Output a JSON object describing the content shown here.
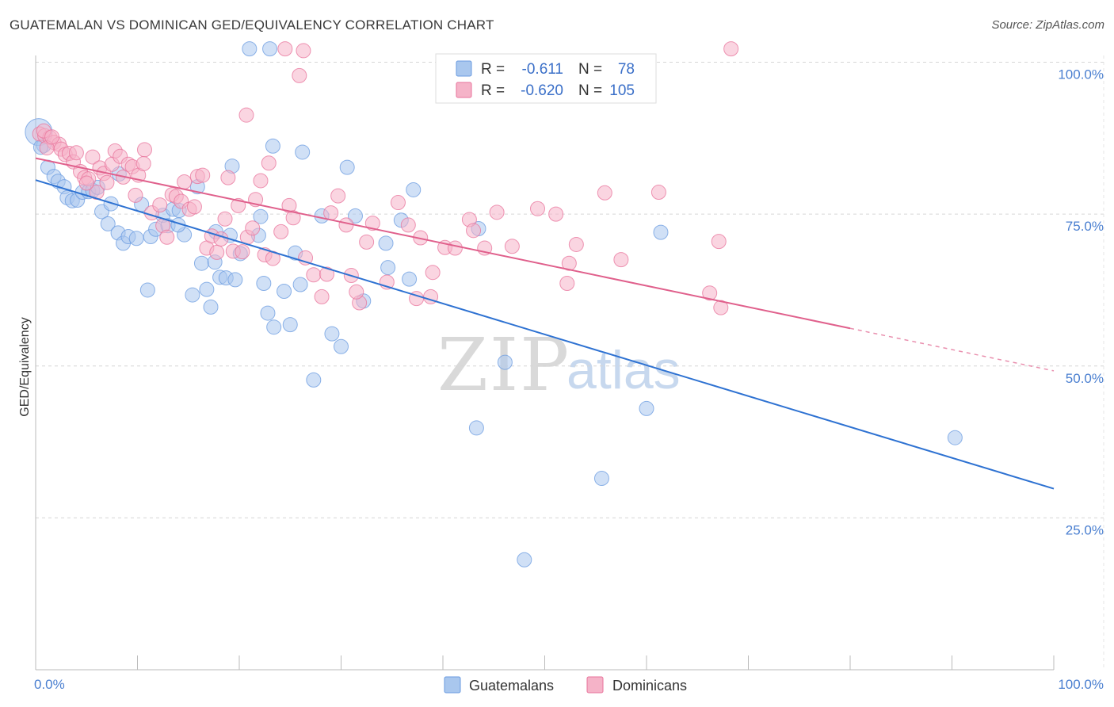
{
  "header": {
    "title": "GUATEMALAN VS DOMINICAN GED/EQUIVALENCY CORRELATION CHART",
    "source": "Source: ZipAtlas.com"
  },
  "watermark": {
    "zip": "ZIP",
    "atlas": "atlas"
  },
  "legend": {
    "rows": [
      {
        "r_label": "R =",
        "r_value": "-0.611",
        "n_label": "N =",
        "n_value": "78",
        "color": "#a9c7ee"
      },
      {
        "r_label": "R =",
        "r_value": "-0.620",
        "n_label": "N =",
        "n_value": "105",
        "color": "#f5b3c8"
      }
    ]
  },
  "bottom_legend": {
    "items": [
      {
        "label": "Guatemalans",
        "color": "#a9c7ee"
      },
      {
        "label": "Dominicans",
        "color": "#f5b3c8"
      }
    ]
  },
  "chart_data": {
    "type": "scatter",
    "title": "GUATEMALAN VS DOMINICAN GED/EQUIVALENCY CORRELATION CHART",
    "xlabel": "",
    "ylabel": "GED/Equivalency",
    "xlim": [
      0,
      100
    ],
    "ylim": [
      0,
      105
    ],
    "x_tick_labels": [
      {
        "value": 0,
        "label": "0.0%"
      },
      {
        "value": 100,
        "label": "100.0%"
      }
    ],
    "y_tick_labels": [
      {
        "value": 100,
        "label": "100.0%"
      },
      {
        "value": 75,
        "label": "75.0%"
      },
      {
        "value": 50,
        "label": "50.0%"
      },
      {
        "value": 25,
        "label": "25.0%"
      }
    ],
    "grid": true,
    "legend_placement": "top-center",
    "series": [
      {
        "name": "Guatemalans",
        "color": "#6a9be0",
        "fill": "#a9c7ee",
        "trend": {
          "x": [
            0,
            100
          ],
          "y": [
            80.6,
            29.8
          ]
        },
        "points": [
          [
            0.3,
            88.5
          ],
          [
            0.8,
            86.3
          ],
          [
            1.2,
            82.7
          ],
          [
            1.8,
            81.2
          ],
          [
            2.2,
            80.4
          ],
          [
            2.8,
            79.5
          ],
          [
            3.1,
            77.7
          ],
          [
            3.6,
            77.2
          ],
          [
            4.1,
            77.3
          ],
          [
            4.6,
            78.6
          ],
          [
            5.2,
            78.7
          ],
          [
            5.6,
            78.9
          ],
          [
            6.1,
            79.4
          ],
          [
            6.5,
            75.4
          ],
          [
            7.1,
            73.4
          ],
          [
            7.4,
            76.7
          ],
          [
            8.2,
            81.6
          ],
          [
            8.1,
            71.9
          ],
          [
            8.6,
            70.2
          ],
          [
            9.1,
            71.3
          ],
          [
            9.9,
            71.0
          ],
          [
            10.4,
            76.6
          ],
          [
            11.0,
            62.5
          ],
          [
            11.3,
            71.3
          ],
          [
            11.8,
            72.5
          ],
          [
            12.5,
            74.8
          ],
          [
            13.0,
            73.1
          ],
          [
            13.5,
            75.8
          ],
          [
            14.1,
            75.6
          ],
          [
            14.6,
            71.6
          ],
          [
            15.4,
            61.7
          ],
          [
            15.9,
            79.5
          ],
          [
            16.3,
            66.9
          ],
          [
            16.8,
            62.6
          ],
          [
            17.2,
            59.7
          ],
          [
            17.6,
            67.1
          ],
          [
            18.1,
            64.6
          ],
          [
            18.7,
            64.5
          ],
          [
            19.1,
            71.5
          ],
          [
            19.3,
            82.9
          ],
          [
            19.6,
            64.2
          ],
          [
            20.1,
            68.5
          ],
          [
            21.0,
            102.2
          ],
          [
            21.9,
            71.5
          ],
          [
            22.1,
            74.6
          ],
          [
            22.4,
            63.6
          ],
          [
            22.8,
            58.7
          ],
          [
            23.3,
            86.2
          ],
          [
            23.4,
            56.4
          ],
          [
            24.4,
            62.3
          ],
          [
            25.0,
            56.8
          ],
          [
            25.5,
            68.6
          ],
          [
            26.0,
            63.4
          ],
          [
            26.2,
            85.2
          ],
          [
            27.3,
            47.7
          ],
          [
            28.1,
            74.7
          ],
          [
            29.1,
            55.3
          ],
          [
            30.0,
            53.2
          ],
          [
            30.6,
            82.7
          ],
          [
            31.4,
            74.7
          ],
          [
            32.2,
            60.7
          ],
          [
            34.4,
            70.2
          ],
          [
            34.6,
            66.2
          ],
          [
            35.9,
            74.0
          ],
          [
            36.7,
            64.3
          ],
          [
            37.1,
            79.0
          ],
          [
            43.3,
            39.8
          ],
          [
            43.5,
            72.6
          ],
          [
            46.1,
            50.6
          ],
          [
            48.0,
            18.1
          ],
          [
            55.6,
            31.5
          ],
          [
            60.0,
            43.0
          ],
          [
            61.4,
            72.0
          ],
          [
            90.3,
            38.2
          ],
          [
            23.0,
            102.2
          ],
          [
            0.5,
            86.0
          ],
          [
            17.7,
            72.1
          ],
          [
            14.0,
            73.2
          ]
        ]
      },
      {
        "name": "Dominicans",
        "color": "#e8739b",
        "fill": "#f5b3c8",
        "trend": {
          "x": [
            0,
            80
          ],
          "y": [
            84.2,
            56.2
          ]
        },
        "trend_dashed": {
          "x": [
            80,
            100
          ],
          "y": [
            56.2,
            49.2
          ]
        },
        "points": [
          [
            0.4,
            88.2
          ],
          [
            0.9,
            87.9
          ],
          [
            1.4,
            87.6
          ],
          [
            1.8,
            86.8
          ],
          [
            2.3,
            86.5
          ],
          [
            2.5,
            85.7
          ],
          [
            2.9,
            84.8
          ],
          [
            3.3,
            85.0
          ],
          [
            3.7,
            83.6
          ],
          [
            4.0,
            85.1
          ],
          [
            4.4,
            82.0
          ],
          [
            4.8,
            81.0
          ],
          [
            5.2,
            80.8
          ],
          [
            5.6,
            84.4
          ],
          [
            6.0,
            78.6
          ],
          [
            6.3,
            82.6
          ],
          [
            6.7,
            81.7
          ],
          [
            7.0,
            80.2
          ],
          [
            7.5,
            83.2
          ],
          [
            7.8,
            85.4
          ],
          [
            8.3,
            84.5
          ],
          [
            8.6,
            81.1
          ],
          [
            9.1,
            83.2
          ],
          [
            9.5,
            82.8
          ],
          [
            10.1,
            81.4
          ],
          [
            10.7,
            85.6
          ],
          [
            10.6,
            83.3
          ],
          [
            11.4,
            75.2
          ],
          [
            12.2,
            76.5
          ],
          [
            12.5,
            73.1
          ],
          [
            12.9,
            71.2
          ],
          [
            13.4,
            78.2
          ],
          [
            13.8,
            77.9
          ],
          [
            14.3,
            77.1
          ],
          [
            14.6,
            80.3
          ],
          [
            15.1,
            75.8
          ],
          [
            15.6,
            76.2
          ],
          [
            15.9,
            81.2
          ],
          [
            16.4,
            81.4
          ],
          [
            16.8,
            69.4
          ],
          [
            17.3,
            71.4
          ],
          [
            17.8,
            68.7
          ],
          [
            18.2,
            70.9
          ],
          [
            18.6,
            74.2
          ],
          [
            18.9,
            81.0
          ],
          [
            19.4,
            68.9
          ],
          [
            19.9,
            76.4
          ],
          [
            20.3,
            68.8
          ],
          [
            20.8,
            71.2
          ],
          [
            21.3,
            72.7
          ],
          [
            21.6,
            77.4
          ],
          [
            22.1,
            80.5
          ],
          [
            22.5,
            68.3
          ],
          [
            22.9,
            83.4
          ],
          [
            23.3,
            67.7
          ],
          [
            24.1,
            72.1
          ],
          [
            24.5,
            102.2
          ],
          [
            24.9,
            76.4
          ],
          [
            25.3,
            74.4
          ],
          [
            25.9,
            97.8
          ],
          [
            26.5,
            67.8
          ],
          [
            27.3,
            65.0
          ],
          [
            28.1,
            61.4
          ],
          [
            28.6,
            65.1
          ],
          [
            29.0,
            75.2
          ],
          [
            29.7,
            78.0
          ],
          [
            30.5,
            73.2
          ],
          [
            31.0,
            64.9
          ],
          [
            31.8,
            60.4
          ],
          [
            32.5,
            70.4
          ],
          [
            33.1,
            73.5
          ],
          [
            34.5,
            63.8
          ],
          [
            35.6,
            76.9
          ],
          [
            36.6,
            73.2
          ],
          [
            37.8,
            71.1
          ],
          [
            38.8,
            61.4
          ],
          [
            39.0,
            65.4
          ],
          [
            40.2,
            69.5
          ],
          [
            41.2,
            69.4
          ],
          [
            42.6,
            74.1
          ],
          [
            44.1,
            69.4
          ],
          [
            45.3,
            75.3
          ],
          [
            46.8,
            69.7
          ],
          [
            49.3,
            75.9
          ],
          [
            51.1,
            75.0
          ],
          [
            52.2,
            63.6
          ],
          [
            53.1,
            70.0
          ],
          [
            57.5,
            67.5
          ],
          [
            67.3,
            59.6
          ],
          [
            67.1,
            70.5
          ],
          [
            68.3,
            102.2
          ],
          [
            0.8,
            88.7
          ],
          [
            1.1,
            85.9
          ],
          [
            1.6,
            87.7
          ],
          [
            5.0,
            80.1
          ],
          [
            9.8,
            78.1
          ],
          [
            20.7,
            91.3
          ],
          [
            31.5,
            62.2
          ],
          [
            37.4,
            61.1
          ],
          [
            43.0,
            72.3
          ],
          [
            55.9,
            78.5
          ],
          [
            66.2,
            62.0
          ],
          [
            61.2,
            78.6
          ],
          [
            26.3,
            101.9
          ],
          [
            52.4,
            66.9
          ]
        ]
      }
    ]
  }
}
